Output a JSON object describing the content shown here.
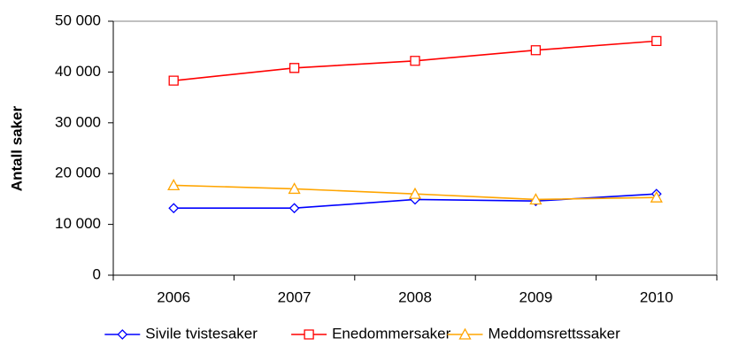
{
  "chart_data": {
    "type": "line",
    "y_axis_label": "Antall saker",
    "categories": [
      "2006",
      "2007",
      "2008",
      "2009",
      "2010"
    ],
    "series": [
      {
        "name": "Sivile tvistesaker",
        "color": "#0000ff",
        "marker": "diamond",
        "values": [
          13200,
          13200,
          14900,
          14600,
          16000
        ]
      },
      {
        "name": "Enedommersaker",
        "color": "#ff0000",
        "marker": "square",
        "values": [
          38300,
          40800,
          42200,
          44300,
          46100
        ]
      },
      {
        "name": "Meddomsrettssaker",
        "color": "#ffa500",
        "marker": "triangle",
        "values": [
          17700,
          17000,
          16000,
          14900,
          15300
        ]
      }
    ],
    "ylim": [
      0,
      50000
    ],
    "yticks": [
      {
        "value": 0,
        "label": "0"
      },
      {
        "value": 10000,
        "label": "10 000"
      },
      {
        "value": 20000,
        "label": "20 000"
      },
      {
        "value": 30000,
        "label": "30 000"
      },
      {
        "value": 40000,
        "label": "40 000"
      },
      {
        "value": 50000,
        "label": "50 000"
      }
    ],
    "legend": "bottom"
  }
}
